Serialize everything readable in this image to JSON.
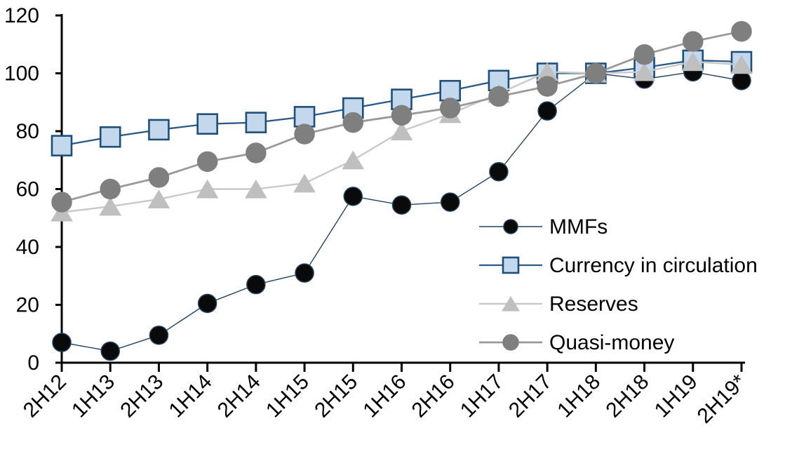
{
  "chart_data": {
    "type": "line",
    "title": "",
    "xlabel": "",
    "ylabel": "",
    "categories": [
      "2H12",
      "1H13",
      "2H13",
      "1H14",
      "2H14",
      "1H15",
      "2H15",
      "1H16",
      "2H16",
      "1H17",
      "2H17",
      "1H18",
      "2H18",
      "1H19",
      "2H19*"
    ],
    "series": [
      {
        "name": "MMFs",
        "marker": "circle",
        "line_color": "#24425F",
        "marker_fill": "#0A0A0A",
        "marker_stroke": "#24425F",
        "line_width": 1.4,
        "marker_size": 13,
        "values": [
          7,
          4,
          9.5,
          20.5,
          27,
          31,
          57.5,
          54.5,
          55.5,
          66,
          87,
          100,
          98,
          100.5,
          97.5
        ]
      },
      {
        "name": "Currency in circulation",
        "marker": "square",
        "line_color": "#2B5A87",
        "marker_fill": "#C3D8ED",
        "marker_stroke": "#1F4E79",
        "line_width": 2.3,
        "marker_size": 14,
        "values": [
          75,
          78,
          80.5,
          82.5,
          83,
          85,
          88,
          91,
          94,
          97.5,
          100,
          100,
          102,
          104.5,
          104
        ]
      },
      {
        "name": "Reserves",
        "marker": "triangle",
        "line_color": "#C9C9C9",
        "marker_fill": "#BFBFBF",
        "marker_stroke": "#BFBFBF",
        "line_width": 2.4,
        "marker_size": 15,
        "values": [
          52,
          54,
          56.5,
          60,
          60,
          62,
          70,
          80,
          86,
          93,
          100.5,
          100,
          100.5,
          104,
          103
        ]
      },
      {
        "name": "Quasi-money",
        "marker": "circle",
        "line_color": "#999999",
        "marker_fill": "#7F7F7F",
        "marker_stroke": "#7F7F7F",
        "line_width": 2.8,
        "marker_size": 14,
        "values": [
          55.5,
          60,
          64,
          69.5,
          72.5,
          79,
          83,
          85.5,
          88,
          92,
          95.5,
          100,
          106.5,
          111,
          114.5
        ]
      }
    ],
    "ylim": [
      0,
      120
    ],
    "yticks": [
      0,
      20,
      40,
      60,
      80,
      100,
      120
    ],
    "grid": false,
    "legend_position": "inside-right",
    "axis_color": "#000000",
    "background": "#FFFFFF"
  }
}
